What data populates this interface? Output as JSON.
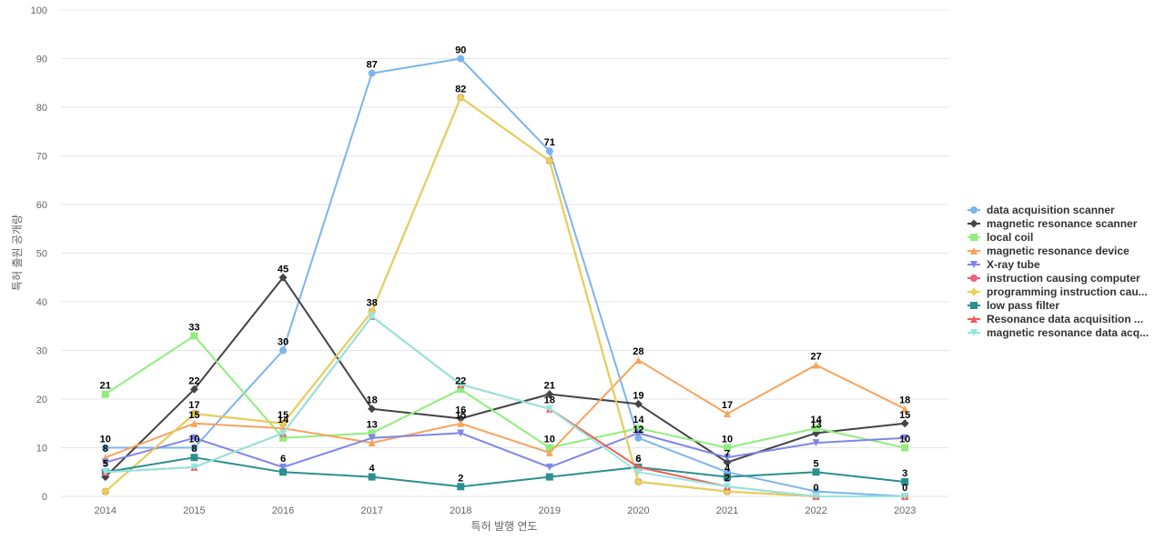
{
  "chart_data": {
    "type": "line",
    "xlabel": "특허 발행 연도",
    "ylabel": "특허 출원 공개량",
    "ylim": [
      0,
      100
    ],
    "yticks": [
      0,
      10,
      20,
      30,
      40,
      50,
      60,
      70,
      80,
      90,
      100
    ],
    "grid": true,
    "legend_position": "right",
    "categories": [
      "2014",
      "2015",
      "2016",
      "2017",
      "2018",
      "2019",
      "2020",
      "2021",
      "2022",
      "2023"
    ],
    "series": [
      {
        "name": "data acquisition scanner",
        "color": "#7cb5ec",
        "marker": "circle",
        "values": [
          10,
          10,
          30,
          87,
          90,
          71,
          12,
          5,
          1,
          0
        ]
      },
      {
        "name": "magnetic resonance scanner",
        "color": "#434348",
        "marker": "diamond",
        "values": [
          4,
          22,
          45,
          18,
          16,
          21,
          19,
          7,
          13,
          15
        ]
      },
      {
        "name": "local coil",
        "color": "#90ed7d",
        "marker": "square",
        "values": [
          21,
          33,
          12,
          13,
          22,
          10,
          14,
          10,
          14,
          10
        ]
      },
      {
        "name": "magnetic resonance device",
        "color": "#f7a35c",
        "marker": "triangle",
        "values": [
          8,
          15,
          14,
          11,
          15,
          9,
          28,
          17,
          27,
          18
        ]
      },
      {
        "name": "X-ray tube",
        "color": "#8085e9",
        "marker": "triangle-down",
        "values": [
          7,
          12,
          6,
          12,
          13,
          6,
          13,
          8,
          11,
          12
        ]
      },
      {
        "name": "instruction causing computer",
        "color": "#f15c80",
        "marker": "circle",
        "values": [
          1,
          17,
          15,
          38,
          82,
          69,
          3,
          1,
          0,
          0
        ]
      },
      {
        "name": "programming instruction cau...",
        "color": "#e4d354",
        "marker": "diamond",
        "values": [
          1,
          17,
          15,
          38,
          82,
          69,
          3,
          1,
          0,
          0
        ]
      },
      {
        "name": "low pass filter",
        "color": "#2b908f",
        "marker": "square",
        "values": [
          5,
          8,
          5,
          4,
          2,
          4,
          6,
          4,
          5,
          3
        ]
      },
      {
        "name": "Resonance data acquisition ...",
        "color": "#f45b5b",
        "marker": "triangle",
        "values": [
          5,
          6,
          13,
          37,
          23,
          18,
          6,
          2,
          0,
          0
        ]
      },
      {
        "name": "magnetic resonance data acq...",
        "color": "#91e8e1",
        "marker": "triangle-down",
        "values": [
          5,
          6,
          13,
          37,
          23,
          18,
          5,
          2,
          0,
          0
        ]
      }
    ],
    "data_labels": [
      {
        "series": 0,
        "points": [
          0,
          1,
          2,
          3,
          4,
          5,
          6
        ]
      },
      {
        "series": 1,
        "points": [
          1,
          2,
          3,
          4,
          5,
          6,
          7,
          8,
          9
        ]
      },
      {
        "series": 2,
        "points": [
          0,
          1,
          3,
          4,
          5,
          6,
          7,
          8,
          9
        ]
      },
      {
        "series": 3,
        "points": [
          0,
          1,
          2,
          4,
          6,
          7,
          8,
          9
        ]
      },
      {
        "series": 4,
        "points": [
          2
        ]
      },
      {
        "series": 5,
        "points": [
          3,
          4
        ]
      },
      {
        "series": 6,
        "points": [
          1,
          2
        ]
      },
      {
        "series": 7,
        "points": [
          0,
          1,
          3,
          4,
          6,
          7,
          8,
          9
        ]
      },
      {
        "series": 8,
        "points": [
          0,
          6,
          7,
          8,
          9
        ]
      },
      {
        "series": 9,
        "points": [
          5
        ]
      }
    ]
  }
}
